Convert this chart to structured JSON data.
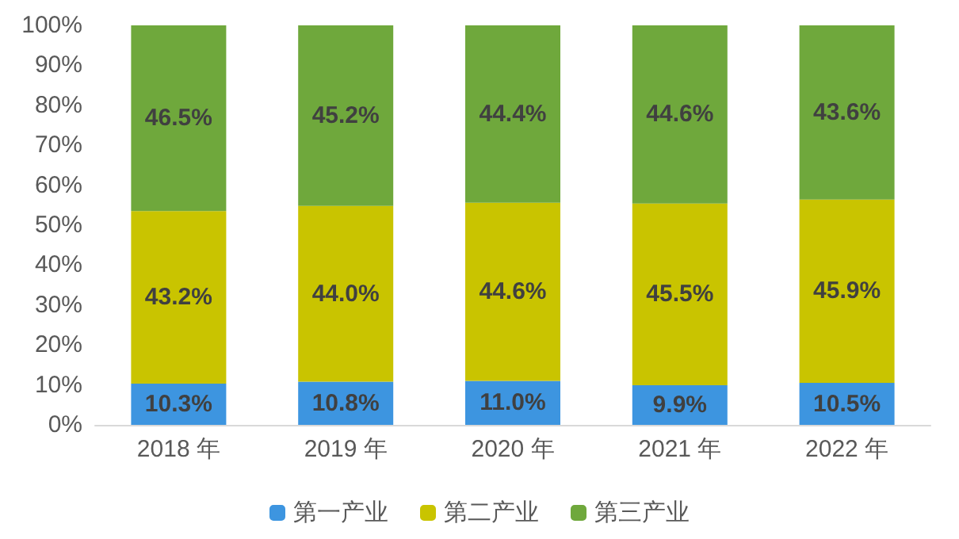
{
  "chart_data": {
    "type": "bar",
    "stacked": true,
    "categories": [
      "2018 年",
      "2019 年",
      "2020 年",
      "2021 年",
      "2022 年"
    ],
    "series": [
      {
        "name": "第一产业",
        "color": "#3d95e0",
        "values": [
          10.3,
          10.8,
          11.0,
          9.9,
          10.5
        ],
        "value_labels": [
          "10.3%",
          "10.8%",
          "11.0%",
          "9.9%",
          "10.5%"
        ]
      },
      {
        "name": "第二产业",
        "color": "#c9c400",
        "values": [
          43.2,
          44.0,
          44.6,
          45.5,
          45.9
        ],
        "value_labels": [
          "43.2%",
          "44.0%",
          "44.6%",
          "45.5%",
          "45.9%"
        ]
      },
      {
        "name": "第三产业",
        "color": "#6fa83c",
        "values": [
          46.5,
          45.2,
          44.4,
          44.6,
          43.6
        ],
        "value_labels": [
          "46.5%",
          "45.2%",
          "44.4%",
          "44.6%",
          "43.6%"
        ]
      }
    ],
    "ylim": [
      0,
      100
    ],
    "yticks": [
      {
        "value": 0,
        "label": "0%"
      },
      {
        "value": 10,
        "label": "10%"
      },
      {
        "value": 20,
        "label": "20%"
      },
      {
        "value": 30,
        "label": "30%"
      },
      {
        "value": 40,
        "label": "40%"
      },
      {
        "value": 50,
        "label": "50%"
      },
      {
        "value": 60,
        "label": "60%"
      },
      {
        "value": 70,
        "label": "70%"
      },
      {
        "value": 80,
        "label": "80%"
      },
      {
        "value": 90,
        "label": "90%"
      },
      {
        "value": 100,
        "label": "100%"
      }
    ],
    "grid": false,
    "legend": "bottom"
  }
}
